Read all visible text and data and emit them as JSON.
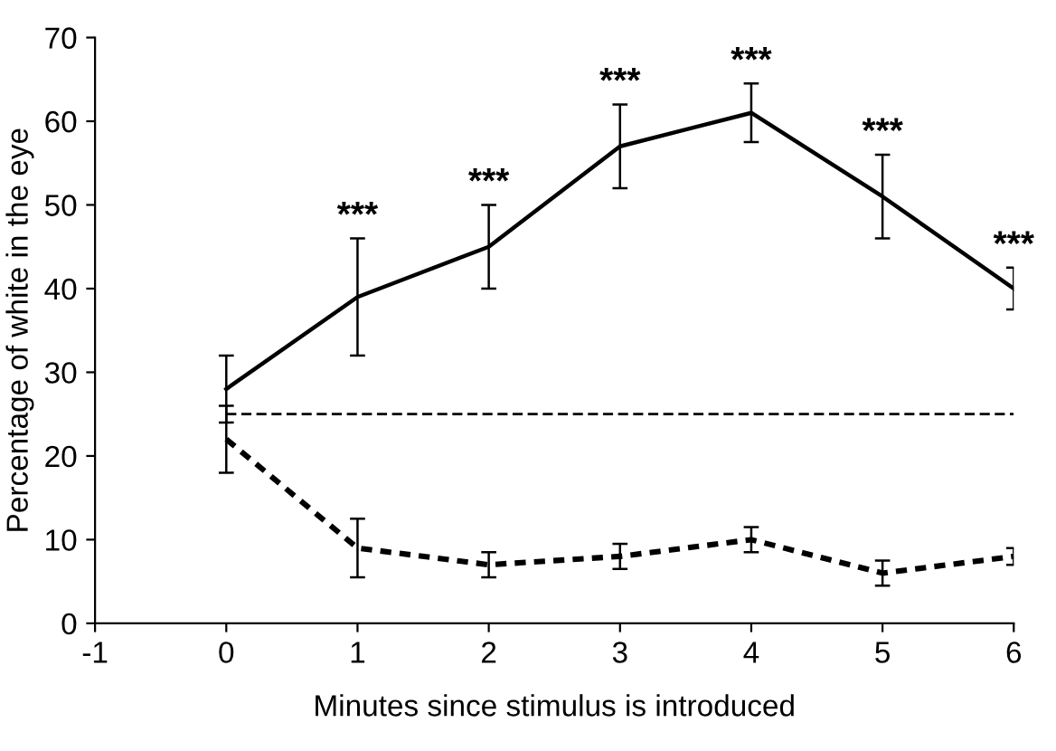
{
  "chart_data": {
    "type": "line",
    "xlabel": "Minutes since stimulus is introduced",
    "ylabel": "Percentage of white in the eye",
    "x": [
      0,
      1,
      2,
      3,
      4,
      5,
      6
    ],
    "series": [
      {
        "color": "#000000",
        "line_style": "solid",
        "values": [
          28,
          39,
          45,
          57,
          61,
          51,
          40
        ],
        "errors": [
          4,
          7,
          5,
          5,
          3.5,
          5,
          2.5
        ]
      },
      {
        "color": "#000000",
        "line_style": "dotted",
        "values": [
          22,
          9,
          7,
          8,
          10,
          6,
          8
        ],
        "errors": [
          4,
          3.5,
          1.5,
          1.5,
          1.5,
          1.5,
          1
        ]
      }
    ],
    "ref_lines": [
      {
        "axis": "y",
        "value": 25,
        "color": "#000000",
        "line_style": "dashed"
      }
    ],
    "annotations": [
      "***",
      "***",
      "***",
      "***",
      "***",
      "***"
    ],
    "xlim": [
      -1,
      6
    ],
    "xticks": [
      -1,
      0,
      1,
      2,
      3,
      4,
      5,
      6
    ],
    "ylim": [
      0,
      70
    ],
    "yticks": [
      0,
      10,
      20,
      30,
      40,
      50,
      60,
      70
    ],
    "grid": false,
    "legend": false,
    "marker": "none"
  }
}
